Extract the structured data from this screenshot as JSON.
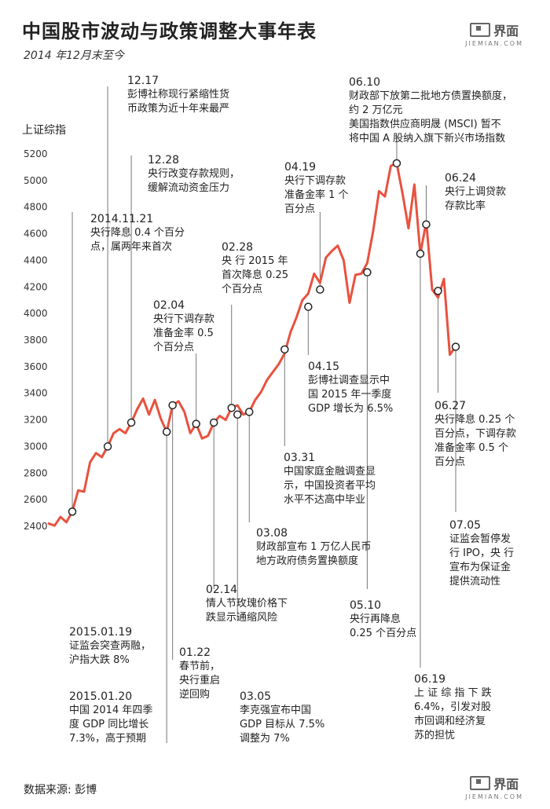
{
  "title": "中国股市波动与政策调整大事年表",
  "subtitle": "2014 年12月末至今",
  "logo": {
    "cn": "界面",
    "en": "JIEMIAN.COM"
  },
  "source": "数据来源: 彭博",
  "chart_data": {
    "type": "line",
    "ylabel": "上证综指",
    "ylim": [
      2400,
      5200
    ],
    "yticks": [
      2400,
      2600,
      2800,
      3000,
      3200,
      3400,
      3600,
      3800,
      4000,
      4200,
      4400,
      4600,
      4800,
      5000,
      5200
    ],
    "series": [
      {
        "values": [
          2420,
          2405,
          2470,
          2430,
          2510,
          2670,
          2660,
          2880,
          2950,
          2920,
          3000,
          3100,
          3130,
          3100,
          3180,
          3280,
          3360,
          3240,
          3350,
          3210,
          3110,
          3310,
          3340,
          3260,
          3100,
          3170,
          3060,
          3080,
          3180,
          3230,
          3200,
          3290,
          3310,
          3240,
          3260,
          3350,
          3410,
          3500,
          3560,
          3620,
          3700,
          3860,
          3970,
          4100,
          4150,
          4300,
          4230,
          4420,
          4470,
          4510,
          4400,
          4080,
          4290,
          4300,
          4380,
          4620,
          4920,
          4880,
          5110,
          5130,
          4900,
          4640,
          4970,
          4450,
          4690,
          4180,
          4120,
          4260,
          3690,
          3750
        ]
      }
    ],
    "markers": [
      {
        "index": 4,
        "value": 2510
      },
      {
        "index": 10,
        "value": 3000
      },
      {
        "index": 14,
        "value": 3180
      },
      {
        "index": 20,
        "value": 3110
      },
      {
        "index": 21,
        "value": 3310
      },
      {
        "index": 25,
        "value": 3170
      },
      {
        "index": 28,
        "value": 3180
      },
      {
        "index": 31,
        "value": 3290
      },
      {
        "index": 32,
        "value": 3240
      },
      {
        "index": 34,
        "value": 3260
      },
      {
        "index": 40,
        "value": 3730
      },
      {
        "index": 44,
        "value": 4050
      },
      {
        "index": 46,
        "value": 4180
      },
      {
        "index": 54,
        "value": 4310
      },
      {
        "index": 59,
        "value": 5130
      },
      {
        "index": 63,
        "value": 4450
      },
      {
        "index": 64,
        "value": 4670
      },
      {
        "index": 66,
        "value": 4170
      },
      {
        "index": 69,
        "value": 3750
      }
    ]
  },
  "annotations": [
    {
      "date": "12.17",
      "text": "彭博社称现行紧缩性货\n币政策为近十年来最严"
    },
    {
      "date": "12.28",
      "text": "央行改变存款规则，\n缓解流动资金压力"
    },
    {
      "date": "2014.11.21",
      "text": "央行降息 0.4 个百分\n点，属两年来首次"
    },
    {
      "date": "02.04",
      "text": "央行下调存款\n准备金率 0.5\n个百分点"
    },
    {
      "date": "02.28",
      "text": "央 行 2015 年\n首次降息 0.25\n个百分点"
    },
    {
      "date": "04.19",
      "text": "央行下调存款\n准备金率 1 个\n百分点"
    },
    {
      "date": "06.10",
      "text": "财政部下放第二批地方债置换额度，\n约 2 万亿元\n美国指数供应商明晟 (MSCI) 暂不\n将中国 A 股纳入旗下新兴市场指数"
    },
    {
      "date": "06.24",
      "text": "央行上调贷款\n存款比率"
    },
    {
      "date": "04.15",
      "text": "彭博社调查显示中\n国 2015 年一季度\nGDP 增长为 6.5%"
    },
    {
      "date": "06.27",
      "text": "央行降息 0.25 个\n百分点，下调存款\n准备金率 0.5 个\n百分点"
    },
    {
      "date": "03.31",
      "text": "中国家庭金融调查显\n示，中国投资者平均\n水平不达高中毕业"
    },
    {
      "date": "03.08",
      "text": "财政部宣布 1 万亿人民币\n地方政府债务置换额度"
    },
    {
      "date": "07.05",
      "text": "证监会暂停发\n行 IPO，央 行\n宣布为保证金\n提供流动性"
    },
    {
      "date": "02.14",
      "text": "情人节玫瑰价格下\n跌显示通缩风险"
    },
    {
      "date": "05.10",
      "text": "央行再降息\n0.25 个百分点"
    },
    {
      "date": "2015.01.19",
      "text": "证监会突查两融，\n沪指大跌 8%"
    },
    {
      "date": "01.22",
      "text": "春节前，\n央行重启\n逆回购"
    },
    {
      "date": "06.19",
      "text": "上 证 综 指 下 跌\n6.4%，引发对股\n市回调和经济复\n苏的担忧"
    },
    {
      "date": "2015.01.20",
      "text": "中国 2014 年四季\n度 GDP 同比增长\n7.3%，高于预期"
    },
    {
      "date": "03.05",
      "text": "李克强宣布中国\nGDP 目标从 7.5%\n调整为 7%"
    }
  ]
}
